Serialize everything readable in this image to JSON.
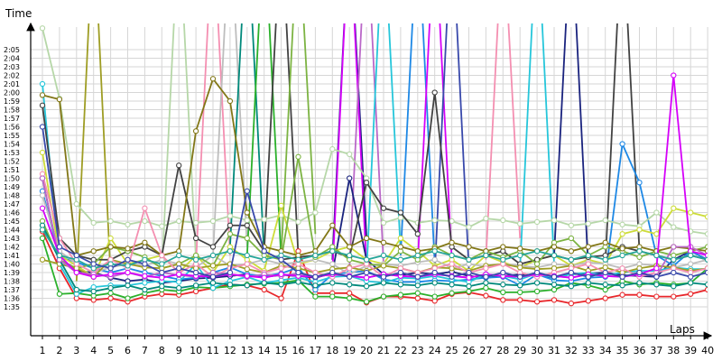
{
  "chart_data": {
    "type": "line",
    "xlabel": "Laps",
    "ylabel": "Time",
    "x": [
      1,
      2,
      3,
      4,
      5,
      6,
      7,
      8,
      9,
      10,
      11,
      12,
      13,
      14,
      15,
      16,
      17,
      18,
      19,
      20,
      21,
      22,
      23,
      24,
      25,
      26,
      27,
      28,
      29,
      30,
      31,
      32,
      33,
      34,
      35,
      36,
      37,
      38,
      39,
      40
    ],
    "y_ticks": [
      "1:35",
      "1:36",
      "1:37",
      "1:38",
      "1:39",
      "1:40",
      "1:41",
      "1:42",
      "1:43",
      "1:44",
      "1:45",
      "1:46",
      "1:47",
      "1:48",
      "1:49",
      "1:50",
      "1:51",
      "1:52",
      "1:53",
      "1:54",
      "1:55",
      "1:56",
      "1:57",
      "1:58",
      "1:59",
      "2:00",
      "2:01",
      "2:02",
      "2:03",
      "2:04",
      "2:05"
    ],
    "ylim_seconds": [
      94,
      127
    ],
    "grid": true,
    "legend": "none",
    "series": [
      {
        "color": "#e8262a",
        "values": [
          103.8,
          99.5,
          96.0,
          95.8,
          96.0,
          95.6,
          96.2,
          96.5,
          96.4,
          96.8,
          97.2,
          97.6,
          97.5,
          97.0,
          96.0,
          101.5,
          96.6,
          96.6,
          96.6,
          95.5,
          96.2,
          96.2,
          96.0,
          95.7,
          96.5,
          96.7,
          96.3,
          95.8,
          95.8,
          95.6,
          95.8,
          95.4,
          95.7,
          96.0,
          96.4,
          96.4,
          96.2,
          96.2,
          96.5,
          97.0
        ]
      },
      {
        "color": "#2bb02b",
        "values": [
          103.0,
          96.5,
          96.6,
          96.3,
          96.6,
          96.0,
          96.6,
          97.0,
          96.8,
          97.3,
          97.2,
          97.4,
          97.6,
          97.7,
          97.8,
          98.1,
          96.2,
          96.2,
          96.0,
          95.6,
          96.2,
          96.4,
          96.6,
          96.2,
          96.6,
          96.8,
          97.2,
          96.7,
          96.7,
          96.8,
          97.0,
          97.8,
          97.5,
          97.0,
          98.0,
          97.6,
          97.8,
          97.6,
          97.8,
          99.5
        ]
      },
      {
        "color": "#1a237e",
        "values": [
          110.0,
          100.5,
          99.2,
          99.0,
          98.4,
          98.0,
          98.2,
          97.8,
          98.0,
          98.3,
          98.4,
          98.6,
          98.8,
          98.5,
          98.7,
          98.6,
          98.4,
          98.9,
          110.0,
          100.5,
          98.8,
          98.7,
          99.0,
          98.8,
          99.1,
          98.6,
          98.4,
          98.6,
          98.8,
          98.7,
          98.4,
          98.8,
          98.9,
          99.0,
          98.7,
          98.6,
          98.5,
          100.5,
          101.5,
          100.5
        ]
      },
      {
        "color": "#1e88e5",
        "values": [
          108.5,
          100.8,
          100.2,
          99.5,
          99.0,
          99.5,
          99.0,
          98.6,
          98.2,
          98.4,
          99.0,
          99.6,
          98.8,
          98.6,
          98.9,
          99.6,
          97.0,
          98.8,
          99.0,
          99.2,
          98.2,
          97.9,
          97.9,
          98.1,
          98.0,
          98.2,
          98.4,
          98.5,
          97.5,
          98.8,
          98.1,
          98.0,
          98.4,
          98.5,
          114.0,
          109.5,
          101.0,
          99.8,
          101.5,
          100.5
        ]
      },
      {
        "color": "#26c6da",
        "values": [
          121.0,
          100.0,
          96.5,
          97.3,
          97.5,
          97.5,
          97.8,
          98.0,
          97.9,
          100.0,
          97.2,
          98.0,
          98.5,
          97.8,
          98.1,
          98.4,
          97.9,
          98.5,
          98.6,
          98.0,
          97.8,
          98.4,
          98.3,
          98.6,
          98.2,
          97.9,
          98.8,
          98.6,
          98.2,
          98.9,
          98.4,
          98.8,
          99.0,
          98.7,
          99.0,
          99.2,
          99.2,
          99.6,
          99.4,
          99.4
        ]
      },
      {
        "color": "#b6d7a8",
        "values": [
          127.5,
          119.3,
          107.0,
          104.8,
          105.0,
          104.6,
          105.0,
          104.4,
          105.0,
          104.8,
          105.0,
          105.6,
          105.1,
          105.2,
          105.7,
          104.9,
          106.0,
          113.4,
          112.8,
          110.0,
          104.8,
          105.4,
          104.8,
          105.1,
          105.0,
          104.3,
          105.3,
          105.1,
          104.7,
          104.9,
          105.1,
          104.5,
          104.7,
          105.1,
          104.6,
          104.4,
          106.0,
          104.3,
          103.8,
          103.5
        ]
      },
      {
        "color": "#cddc39",
        "values": [
          113.0,
          101.0,
          99.8,
          98.5,
          103.0,
          100.0,
          100.5,
          101.0,
          99.0,
          101.0,
          99.0,
          102.0,
          100.5,
          99.2,
          106.8,
          100.0,
          100.5,
          101.5,
          102.0,
          100.5,
          100.0,
          103.0,
          101.5,
          99.8,
          100.5,
          99.2,
          101.0,
          100.2,
          99.6,
          100.5,
          101.0,
          99.8,
          100.5,
          100.0,
          103.5,
          104.0,
          103.5,
          106.5,
          106.0,
          105.5
        ]
      },
      {
        "color": "#bdbdbd",
        "values": [
          108.0,
          101.5,
          100.0,
          99.0,
          99.6,
          100.0,
          99.8,
          100.5,
          100.0,
          99.6,
          101.0,
          99.8,
          100.0,
          100.5,
          100.0,
          100.2,
          100.5,
          100.0,
          98.8,
          99.8,
          100.0,
          99.8,
          100.2,
          100.5,
          99.5,
          100.0,
          99.7,
          100.0,
          99.8,
          99.6,
          100.0,
          99.8,
          100.2,
          100.0,
          99.5,
          100.0,
          99.8,
          99.6,
          100.0,
          100.5
        ]
      },
      {
        "color": "#424242",
        "values": [
          118.5,
          103.0,
          101.0,
          100.5,
          100.5,
          101.5,
          102.0,
          101.0,
          111.5,
          103.0,
          102.0,
          104.5,
          104.5,
          101.5,
          100.5,
          100.8,
          101.0,
          101.5,
          100.8,
          109.5,
          106.5,
          106.0,
          103.5,
          120.0,
          102.0,
          100.5,
          101.0,
          101.5,
          100.0,
          100.5,
          101.0,
          100.5,
          100.8,
          101.0,
          102.0,
          101.5,
          101.0,
          100.5,
          101.0,
          100.5
        ]
      },
      {
        "color": "#7cb342",
        "values": [
          105.0,
          100.5,
          99.5,
          100.0,
          102.0,
          101.5,
          100.8,
          99.5,
          100.0,
          101.0,
          99.8,
          103.5,
          103.0,
          101.0,
          100.5,
          112.5,
          100.8,
          102.0,
          100.5,
          100.0,
          99.8,
          101.5,
          100.5,
          102.0,
          101.0,
          100.5,
          101.5,
          100.8,
          101.5,
          100.0,
          102.5,
          103.0,
          101.0,
          102.0,
          101.5,
          100.8,
          101.5,
          101.0,
          101.5,
          102.0
        ]
      },
      {
        "color": "#9e9d24",
        "values": [
          100.5,
          100.0,
          99.5,
          98.5,
          100.5,
          100.0,
          99.6,
          99.5,
          100.0,
          99.5,
          99.8,
          100.0,
          99.4,
          99.0,
          99.8,
          99.5,
          99.0,
          99.4,
          99.6,
          99.2,
          99.8,
          99.5,
          99.0,
          99.6,
          99.5,
          99.2,
          99.8,
          100.0,
          99.6,
          99.4,
          99.5,
          99.8,
          99.2,
          99.6,
          99.0,
          99.5,
          99.8,
          99.6,
          99.2,
          99.5
        ]
      },
      {
        "color": "#827717",
        "values": [
          119.7,
          119.2,
          101.0,
          101.5,
          102.0,
          101.8,
          102.5,
          101.0,
          101.5,
          115.5,
          121.6,
          119.0,
          106.0,
          102.0,
          101.5,
          101.0,
          101.5,
          104.5,
          102.0,
          103.0,
          102.5,
          102.0,
          101.5,
          101.8,
          102.5,
          102.0,
          101.5,
          102.0,
          101.8,
          101.5,
          102.0,
          101.5,
          102.0,
          102.5,
          101.8,
          102.0,
          101.5,
          102.0,
          101.8,
          101.5
        ]
      },
      {
        "color": "#00897b",
        "values": [
          104.5,
          100.5,
          97.0,
          96.8,
          97.2,
          97.5,
          97.0,
          97.4,
          97.2,
          97.5,
          97.8,
          97.6,
          97.5,
          97.8,
          97.6,
          97.9,
          97.5,
          97.8,
          97.6,
          97.4,
          97.8,
          97.6,
          97.5,
          97.8,
          97.6,
          97.4,
          97.8,
          97.6,
          97.5,
          97.8,
          97.6,
          97.4,
          97.8,
          97.6,
          97.5,
          97.8,
          97.6,
          97.4,
          97.8,
          97.6
        ]
      },
      {
        "color": "#f48fb1",
        "values": [
          110.5,
          103.0,
          100.0,
          99.0,
          100.5,
          99.5,
          106.5,
          101.0,
          99.0,
          100.0,
          98.5,
          99.5,
          100.0,
          99.0,
          99.5,
          100.0,
          99.0,
          98.5,
          99.5,
          100.0,
          98.5,
          99.5,
          99.0,
          99.5,
          100.0,
          99.0,
          99.5,
          100.0,
          99.0,
          98.5,
          99.0,
          99.5,
          100.0,
          99.0,
          99.5,
          98.5,
          99.0,
          99.5,
          99.0,
          99.5
        ]
      },
      {
        "color": "#ba68c8",
        "values": [
          110.0,
          100.5,
          99.0,
          98.8,
          98.5,
          99.0,
          98.5,
          99.0,
          98.7,
          98.5,
          99.0,
          98.8,
          98.5,
          98.8,
          98.6,
          98.9,
          98.5,
          98.8,
          98.6,
          98.4,
          98.8,
          98.6,
          98.5,
          98.8,
          98.6,
          98.4,
          98.8,
          98.6,
          98.5,
          98.8,
          98.6,
          98.4,
          98.8,
          98.6,
          98.5,
          98.8,
          98.6,
          102.0,
          102.0,
          101.0
        ]
      },
      {
        "color": "#d500f9",
        "values": [
          106.5,
          101.0,
          99.0,
          98.5,
          98.8,
          99.0,
          98.6,
          98.4,
          98.8,
          98.6,
          98.5,
          98.8,
          98.6,
          98.4,
          98.8,
          98.6,
          98.5,
          98.8,
          98.6,
          98.4,
          98.8,
          98.6,
          98.5,
          98.8,
          98.6,
          98.4,
          98.8,
          98.6,
          98.5,
          98.8,
          98.6,
          98.4,
          98.8,
          98.6,
          98.5,
          98.8,
          99.5,
          122.0,
          101.5,
          101.0
        ]
      },
      {
        "color": "#26a69a",
        "values": [
          104.0,
          101.0,
          100.5,
          99.5,
          100.0,
          99.8,
          100.5,
          100.0,
          101.0,
          100.5,
          101.0,
          101.5,
          101.0,
          100.5,
          101.0,
          100.5,
          101.0,
          101.5,
          101.0,
          100.5,
          101.0,
          100.5,
          101.0,
          101.5,
          101.0,
          100.5,
          101.0,
          100.5,
          101.0,
          101.5,
          101.0,
          100.5,
          101.0,
          100.5,
          101.0,
          101.5,
          101.0,
          100.5,
          101.0,
          100.5
        ]
      },
      {
        "color": "#3949ab",
        "values": [
          116.0,
          102.0,
          101.0,
          100.0,
          99.5,
          100.5,
          100.0,
          99.0,
          99.5,
          99.0,
          98.5,
          99.0,
          108.5,
          101.5,
          100.5,
          99.0,
          98.5,
          99.0,
          98.5,
          99.0,
          98.5,
          99.0,
          98.5,
          99.0,
          98.5,
          99.0,
          98.5,
          99.0,
          98.5,
          99.0,
          98.5,
          99.0,
          98.5,
          99.0,
          98.5,
          99.0,
          98.5,
          99.0,
          98.5,
          99.0
        ]
      }
    ],
    "spikes": [
      {
        "color": "#9e9d24",
        "x": [
          3,
          4,
          5
        ],
        "values": [
          98.0,
          140.0,
          98.5
        ]
      },
      {
        "color": "#b6d7a8",
        "x": [
          8,
          9,
          10
        ],
        "values": [
          99.0,
          140.0,
          100.5
        ]
      },
      {
        "color": "#f48fb1",
        "x": [
          10,
          11,
          12
        ],
        "values": [
          100.0,
          140.0,
          101.0
        ]
      },
      {
        "color": "#bdbdbd",
        "x": [
          11,
          12,
          13
        ],
        "values": [
          101.0,
          140.0,
          102.0
        ]
      },
      {
        "color": "#00897b",
        "x": [
          12,
          13,
          14
        ],
        "values": [
          102.0,
          140.0,
          101.0
        ]
      },
      {
        "color": "#2bb02b",
        "x": [
          13,
          14,
          15
        ],
        "values": [
          101.0,
          140.0,
          100.5
        ]
      },
      {
        "color": "#424242",
        "x": [
          14,
          15,
          16
        ],
        "values": [
          101.5,
          140.0,
          101.0
        ]
      },
      {
        "color": "#7cb342",
        "x": [
          15,
          16,
          17
        ],
        "values": [
          101.0,
          140.0,
          103.5
        ]
      },
      {
        "color": "#1a237e",
        "x": [
          18,
          19,
          20
        ],
        "values": [
          100.5,
          140.0,
          103.0
        ]
      },
      {
        "color": "#d500f9",
        "x": [
          18,
          19,
          20
        ],
        "values": [
          99.0,
          140.0,
          99.5
        ]
      },
      {
        "color": "#ba68c8",
        "x": [
          19,
          20,
          21
        ],
        "values": [
          99.5,
          140.0,
          100.0
        ]
      },
      {
        "color": "#26c6da",
        "x": [
          20,
          21,
          22
        ],
        "values": [
          99.0,
          140.0,
          101.5
        ]
      },
      {
        "color": "#1e88e5",
        "x": [
          22,
          23,
          24
        ],
        "values": [
          101.0,
          140.0,
          100.0
        ]
      },
      {
        "color": "#d500f9",
        "x": [
          23,
          24,
          25
        ],
        "values": [
          100.0,
          140.0,
          100.5
        ]
      },
      {
        "color": "#3949ab",
        "x": [
          24,
          25,
          26
        ],
        "values": [
          99.0,
          140.0,
          99.5
        ]
      },
      {
        "color": "#f48fb1",
        "x": [
          27,
          28,
          29
        ],
        "values": [
          100.5,
          140.0,
          103.0
        ]
      },
      {
        "color": "#26c6da",
        "x": [
          29,
          30,
          31
        ],
        "values": [
          99.5,
          140.0,
          100.0
        ]
      },
      {
        "color": "#1a237e",
        "x": [
          31,
          32,
          33
        ],
        "values": [
          101.0,
          140.0,
          99.5
        ]
      },
      {
        "color": "#424242",
        "x": [
          34,
          35,
          36
        ],
        "values": [
          100.0,
          140.0,
          101.5
        ]
      }
    ]
  }
}
